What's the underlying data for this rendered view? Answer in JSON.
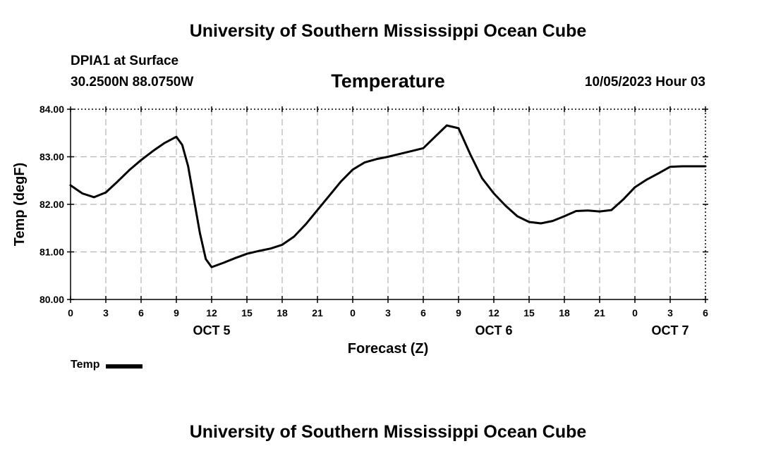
{
  "header": {
    "title": "University of Southern Mississippi Ocean Cube",
    "station": "DPIA1 at Surface",
    "coordinates": "30.2500N  88.0750W",
    "chart_title": "Temperature",
    "run_time": "10/05/2023 Hour 03"
  },
  "footer": {
    "title": "University of Southern Mississippi Ocean Cube"
  },
  "legend": {
    "label": "Temp",
    "color": "#000000"
  },
  "chart_data": {
    "type": "line",
    "title": "Temperature",
    "xlabel": "Forecast (Z)",
    "ylabel": "Temp (degF)",
    "xlim": [
      0,
      54
    ],
    "ylim": [
      80.0,
      84.0
    ],
    "grid": true,
    "x_ticks": [
      0,
      3,
      6,
      9,
      12,
      15,
      18,
      21,
      24,
      27,
      30,
      33,
      36,
      39,
      42,
      45,
      48,
      51,
      54
    ],
    "x_tick_labels": [
      "0",
      "3",
      "6",
      "9",
      "12",
      "15",
      "18",
      "21",
      "0",
      "3",
      "6",
      "9",
      "12",
      "15",
      "18",
      "21",
      "0",
      "3",
      "6"
    ],
    "y_ticks": [
      80.0,
      81.0,
      82.0,
      83.0,
      84.0
    ],
    "y_tick_labels": [
      "80.00",
      "81.00",
      "82.00",
      "83.00",
      "84.00"
    ],
    "date_labels": [
      {
        "x": 12,
        "label": "OCT 5"
      },
      {
        "x": 36,
        "label": "OCT 6"
      },
      {
        "x": 51,
        "label": "OCT 7"
      }
    ],
    "series": [
      {
        "name": "Temp",
        "color": "#000000",
        "x": [
          0,
          1,
          2,
          3,
          4,
          5,
          6,
          7,
          8,
          9,
          9.5,
          10,
          11,
          11.5,
          12,
          13,
          14,
          15,
          16,
          17,
          18,
          19,
          20,
          21,
          22,
          23,
          24,
          25,
          26,
          27,
          28,
          29,
          30,
          31,
          32,
          33,
          34,
          35,
          36,
          37,
          38,
          39,
          40,
          41,
          42,
          43,
          44,
          45,
          46,
          47,
          48,
          49,
          50,
          51,
          52,
          53,
          54
        ],
        "values": [
          82.4,
          82.23,
          82.15,
          82.25,
          82.48,
          82.72,
          82.93,
          83.12,
          83.29,
          83.42,
          83.25,
          82.8,
          81.4,
          80.85,
          80.68,
          80.77,
          80.87,
          80.96,
          81.02,
          81.07,
          81.15,
          81.32,
          81.58,
          81.88,
          82.18,
          82.48,
          82.73,
          82.88,
          82.95,
          83.0,
          83.06,
          83.12,
          83.18,
          83.42,
          83.66,
          83.6,
          83.05,
          82.55,
          82.23,
          81.97,
          81.75,
          81.63,
          81.6,
          81.65,
          81.75,
          81.86,
          81.87,
          81.85,
          81.88,
          82.1,
          82.36,
          82.52,
          82.65,
          82.79,
          82.8,
          82.8,
          82.8
        ]
      }
    ]
  }
}
